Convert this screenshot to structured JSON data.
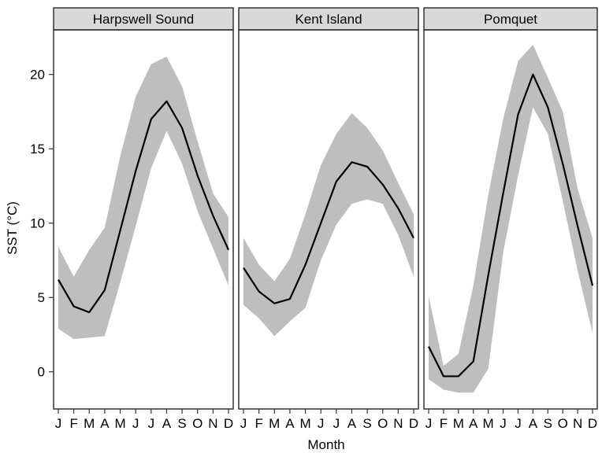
{
  "chart_data": {
    "type": "area",
    "xlabel": "Month",
    "ylabel": "SST (°C)",
    "ylim": [
      -2.5,
      23
    ],
    "yticks": [
      0,
      5,
      10,
      15,
      20
    ],
    "month_labels": [
      "J",
      "F",
      "M",
      "A",
      "M",
      "J",
      "J",
      "A",
      "S",
      "O",
      "N",
      "D"
    ],
    "grid": false,
    "colors": {
      "ribbon": "#bebebe",
      "line": "#000000",
      "strip": "#d9d9d9",
      "border": "#333333"
    },
    "panels": [
      {
        "name": "Harpswell Sound",
        "mean": [
          6.2,
          4.4,
          4.0,
          5.5,
          9.5,
          13.5,
          17.0,
          18.2,
          16.4,
          13.2,
          10.5,
          8.2
        ],
        "lower": [
          2.9,
          2.2,
          2.3,
          2.4,
          6.0,
          9.8,
          13.7,
          16.2,
          14.0,
          10.8,
          8.3,
          5.8
        ],
        "upper": [
          8.4,
          6.4,
          8.2,
          9.7,
          14.5,
          18.5,
          20.7,
          21.2,
          19.2,
          15.5,
          12.0,
          10.4
        ]
      },
      {
        "name": "Kent Island",
        "mean": [
          7.0,
          5.4,
          4.6,
          4.9,
          7.2,
          10.0,
          12.8,
          14.1,
          13.8,
          12.6,
          11.0,
          9.0
        ],
        "lower": [
          4.5,
          3.6,
          2.4,
          3.4,
          4.3,
          7.5,
          9.9,
          11.3,
          11.6,
          11.3,
          9.2,
          6.4
        ],
        "upper": [
          9.0,
          7.2,
          6.1,
          7.6,
          10.6,
          13.9,
          16.0,
          17.4,
          16.4,
          14.9,
          12.7,
          10.6
        ]
      },
      {
        "name": "Pomquet",
        "mean": [
          1.7,
          -0.3,
          -0.3,
          0.7,
          6.5,
          12.0,
          17.3,
          20.0,
          17.8,
          14.0,
          9.8,
          5.8
        ],
        "lower": [
          -0.5,
          -1.2,
          -1.4,
          -1.4,
          0.2,
          8.0,
          13.2,
          17.8,
          16.0,
          11.5,
          6.8,
          2.6
        ],
        "upper": [
          5.1,
          0.4,
          1.2,
          5.8,
          11.9,
          17.0,
          20.9,
          22.0,
          19.8,
          17.5,
          12.3,
          9.0
        ]
      }
    ]
  }
}
